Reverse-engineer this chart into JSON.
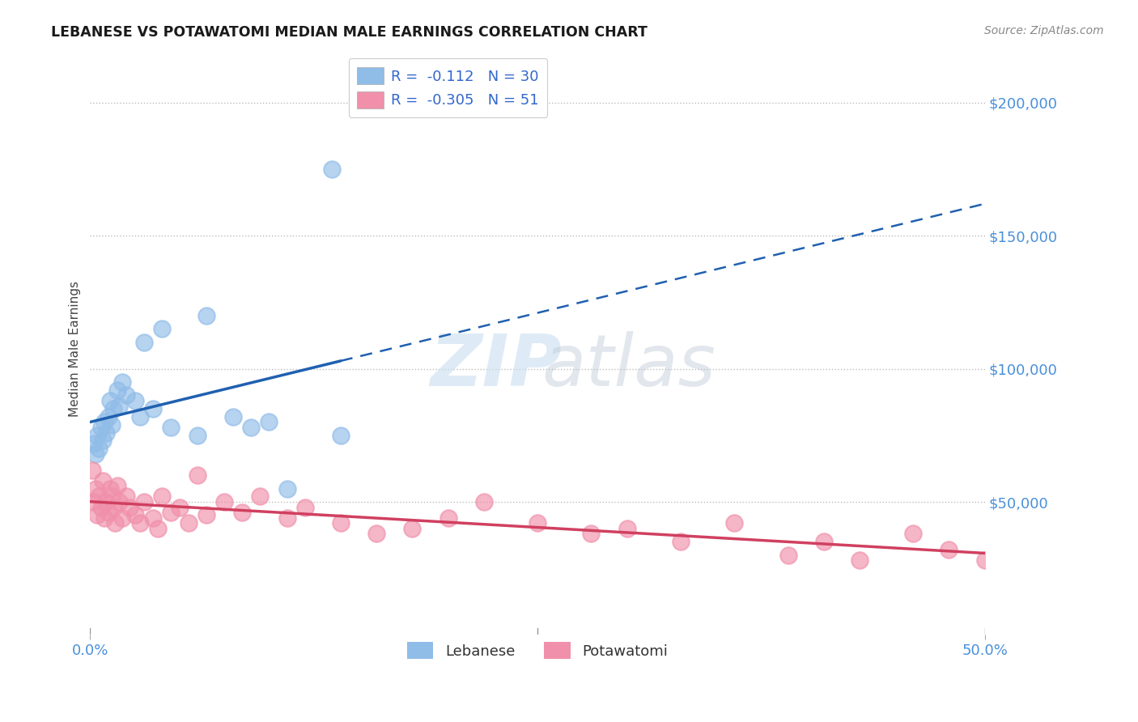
{
  "title": "LEBANESE VS POTAWATOMI MEDIAN MALE EARNINGS CORRELATION CHART",
  "source": "Source: ZipAtlas.com",
  "ylabel": "Median Male Earnings",
  "right_ytick_labels": [
    "$200,000",
    "$150,000",
    "$100,000",
    "$50,000"
  ],
  "right_ytick_values": [
    200000,
    150000,
    100000,
    50000
  ],
  "ylim": [
    0,
    215000
  ],
  "xlim": [
    0.0,
    0.5
  ],
  "lebanese_color": "#90bce8",
  "potawatomi_color": "#f090aa",
  "lebanese_line_color": "#2060b0",
  "potawatomi_line_color": "#d04060",
  "background_color": "#ffffff",
  "watermark_zip": "ZIP",
  "watermark_atlas": "atlas",
  "legend_r1": "R =  -0.112   N = 30",
  "legend_r2": "R =  -0.305   N = 51",
  "legend_color1": "#90bce8",
  "legend_color2": "#f090aa",
  "lebanese_x": [
    0.002,
    0.003,
    0.004,
    0.005,
    0.006,
    0.007,
    0.008,
    0.009,
    0.01,
    0.011,
    0.012,
    0.013,
    0.015,
    0.016,
    0.018,
    0.02,
    0.025,
    0.028,
    0.03,
    0.035,
    0.04,
    0.045,
    0.06,
    0.065,
    0.08,
    0.09,
    0.1,
    0.11,
    0.135,
    0.14
  ],
  "lebanese_y": [
    72000,
    68000,
    75000,
    70000,
    78000,
    73000,
    80000,
    76000,
    82000,
    88000,
    79000,
    85000,
    92000,
    86000,
    95000,
    90000,
    88000,
    82000,
    110000,
    85000,
    115000,
    78000,
    75000,
    120000,
    82000,
    78000,
    80000,
    55000,
    175000,
    75000
  ],
  "potawatomi_x": [
    0.001,
    0.002,
    0.003,
    0.004,
    0.005,
    0.006,
    0.007,
    0.008,
    0.009,
    0.01,
    0.011,
    0.012,
    0.013,
    0.014,
    0.015,
    0.016,
    0.018,
    0.02,
    0.022,
    0.025,
    0.028,
    0.03,
    0.035,
    0.038,
    0.04,
    0.045,
    0.05,
    0.055,
    0.06,
    0.065,
    0.075,
    0.085,
    0.095,
    0.11,
    0.12,
    0.14,
    0.16,
    0.18,
    0.2,
    0.22,
    0.25,
    0.28,
    0.3,
    0.33,
    0.36,
    0.39,
    0.41,
    0.43,
    0.46,
    0.48,
    0.5
  ],
  "potawatomi_y": [
    62000,
    50000,
    55000,
    45000,
    52000,
    48000,
    58000,
    44000,
    50000,
    46000,
    55000,
    52000,
    48000,
    42000,
    56000,
    50000,
    44000,
    52000,
    48000,
    45000,
    42000,
    50000,
    44000,
    40000,
    52000,
    46000,
    48000,
    42000,
    60000,
    45000,
    50000,
    46000,
    52000,
    44000,
    48000,
    42000,
    38000,
    40000,
    44000,
    50000,
    42000,
    38000,
    40000,
    35000,
    42000,
    30000,
    35000,
    28000,
    38000,
    32000,
    28000
  ]
}
